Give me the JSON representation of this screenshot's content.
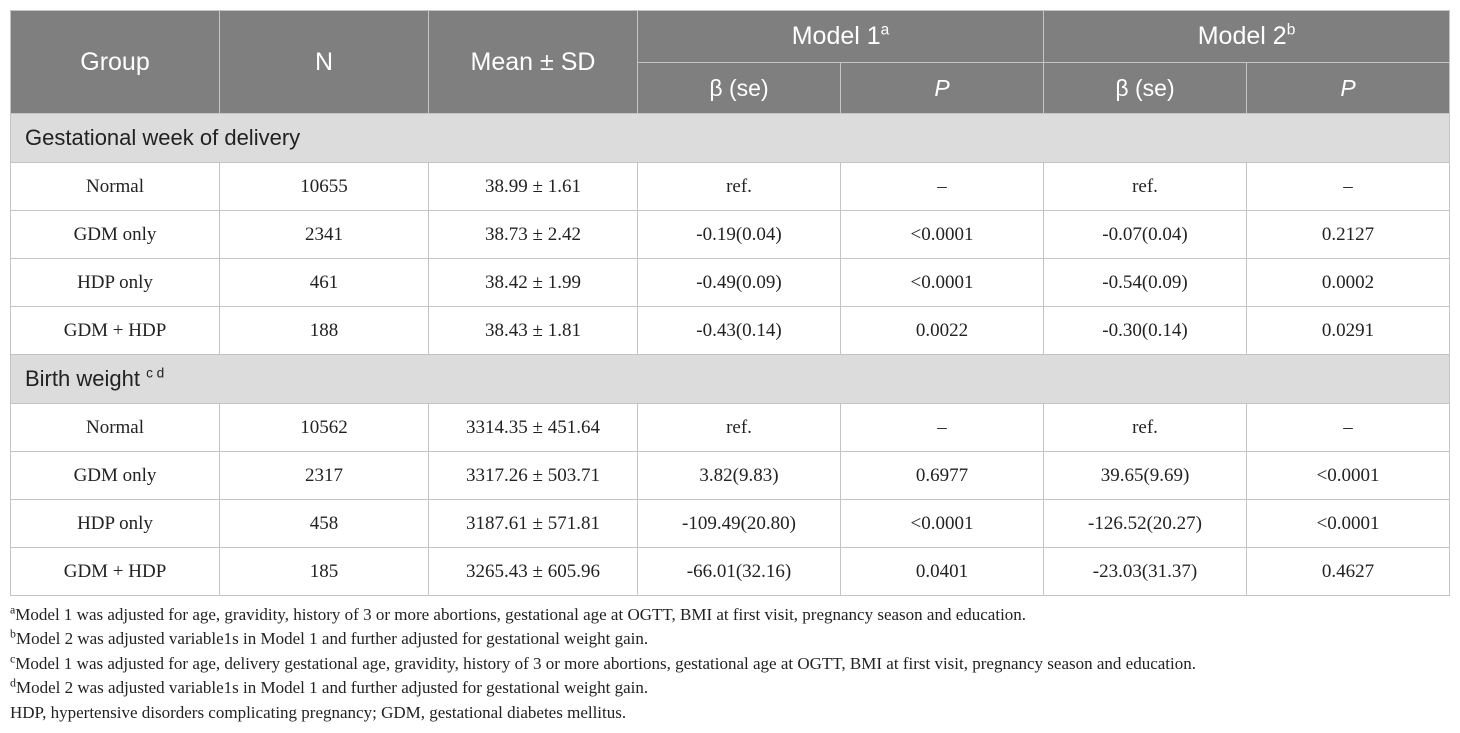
{
  "header": {
    "group": "Group",
    "n": "N",
    "mean_sd": "Mean ± SD",
    "model1": "Model 1",
    "model1_sup": "a",
    "model2": "Model 2",
    "model2_sup": "b",
    "beta_se": "β (se)",
    "p": "P"
  },
  "sections": [
    {
      "title": "Gestational week of delivery",
      "title_sup": "",
      "rows": [
        [
          "Normal",
          "10655",
          "38.99 ± 1.61",
          "ref.",
          "–",
          "ref.",
          "–"
        ],
        [
          "GDM only",
          "2341",
          "38.73 ± 2.42",
          "-0.19(0.04)",
          "<0.0001",
          "-0.07(0.04)",
          "0.2127"
        ],
        [
          "HDP only",
          "461",
          "38.42 ± 1.99",
          "-0.49(0.09)",
          "<0.0001",
          "-0.54(0.09)",
          "0.0002"
        ],
        [
          "GDM + HDP",
          "188",
          "38.43 ± 1.81",
          "-0.43(0.14)",
          "0.0022",
          "-0.30(0.14)",
          "0.0291"
        ]
      ]
    },
    {
      "title": "Birth weight",
      "title_sup": "c d",
      "rows": [
        [
          "Normal",
          "10562",
          "3314.35 ± 451.64",
          "ref.",
          "–",
          "ref.",
          "–"
        ],
        [
          "GDM only",
          "2317",
          "3317.26 ± 503.71",
          "3.82(9.83)",
          "0.6977",
          "39.65(9.69)",
          "<0.0001"
        ],
        [
          "HDP only",
          "458",
          "3187.61 ± 571.81",
          "-109.49(20.80)",
          "<0.0001",
          "-126.52(20.27)",
          "<0.0001"
        ],
        [
          "GDM + HDP",
          "185",
          "3265.43 ± 605.96",
          "-66.01(32.16)",
          "0.0401",
          "-23.03(31.37)",
          "0.4627"
        ]
      ]
    }
  ],
  "footnotes": [
    {
      "sup": "a",
      "text": "Model 1 was adjusted for age, gravidity, history of 3 or more abortions, gestational age at OGTT, BMI at first visit, pregnancy season and education."
    },
    {
      "sup": "b",
      "text": "Model 2 was adjusted variable1s in Model 1 and further adjusted for gestational weight gain."
    },
    {
      "sup": "c",
      "text": "Model 1 was adjusted for age, delivery gestational age, gravidity, history of 3 or more abortions, gestational age at OGTT, BMI at first visit, pregnancy season and education."
    },
    {
      "sup": "d",
      "text": "Model 2 was adjusted variable1s in Model 1 and further adjusted for gestational weight gain."
    },
    {
      "sup": "",
      "text": "HDP, hypertensive disorders complicating pregnancy; GDM, gestational diabetes mellitus."
    }
  ]
}
